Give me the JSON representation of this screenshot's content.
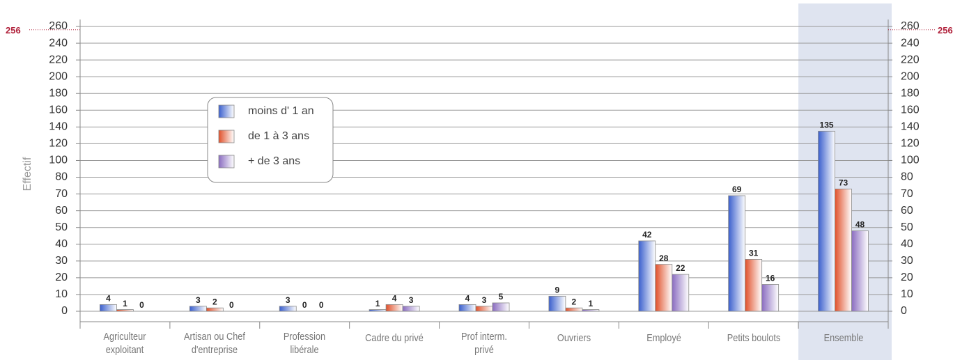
{
  "chart_data": {
    "type": "bar",
    "y_label": "Effectif",
    "categories": [
      "Agriculteur\nexploitant",
      "Artisan ou Chef\nd'entreprise",
      "Profession\nlibérale",
      "Cadre du privé",
      "Prof interm.\nprivé",
      "Ouvriers",
      "Employé",
      "Petits boulots",
      "Ensemble"
    ],
    "series": [
      {
        "name": "moins d' 1 an",
        "color": "#3a5fcd",
        "values": [
          4,
          3,
          3,
          1,
          4,
          9,
          42,
          69,
          135
        ]
      },
      {
        "name": "de 1 à 3 ans",
        "color": "#e0502a",
        "values": [
          1,
          2,
          0,
          4,
          3,
          2,
          28,
          31,
          73
        ]
      },
      {
        "name": "+ de 3 ans",
        "color": "#8a6cc0",
        "values": [
          0,
          0,
          0,
          3,
          5,
          1,
          22,
          16,
          48
        ]
      }
    ],
    "ylim": [
      0,
      260
    ],
    "yticks": [
      0,
      10,
      20,
      30,
      40,
      50,
      60,
      70,
      80,
      100,
      120,
      140,
      160,
      180,
      200,
      220,
      240,
      260
    ],
    "reference_line": 256,
    "highlight_category": 8,
    "grid": true,
    "legend": "upper-left"
  }
}
